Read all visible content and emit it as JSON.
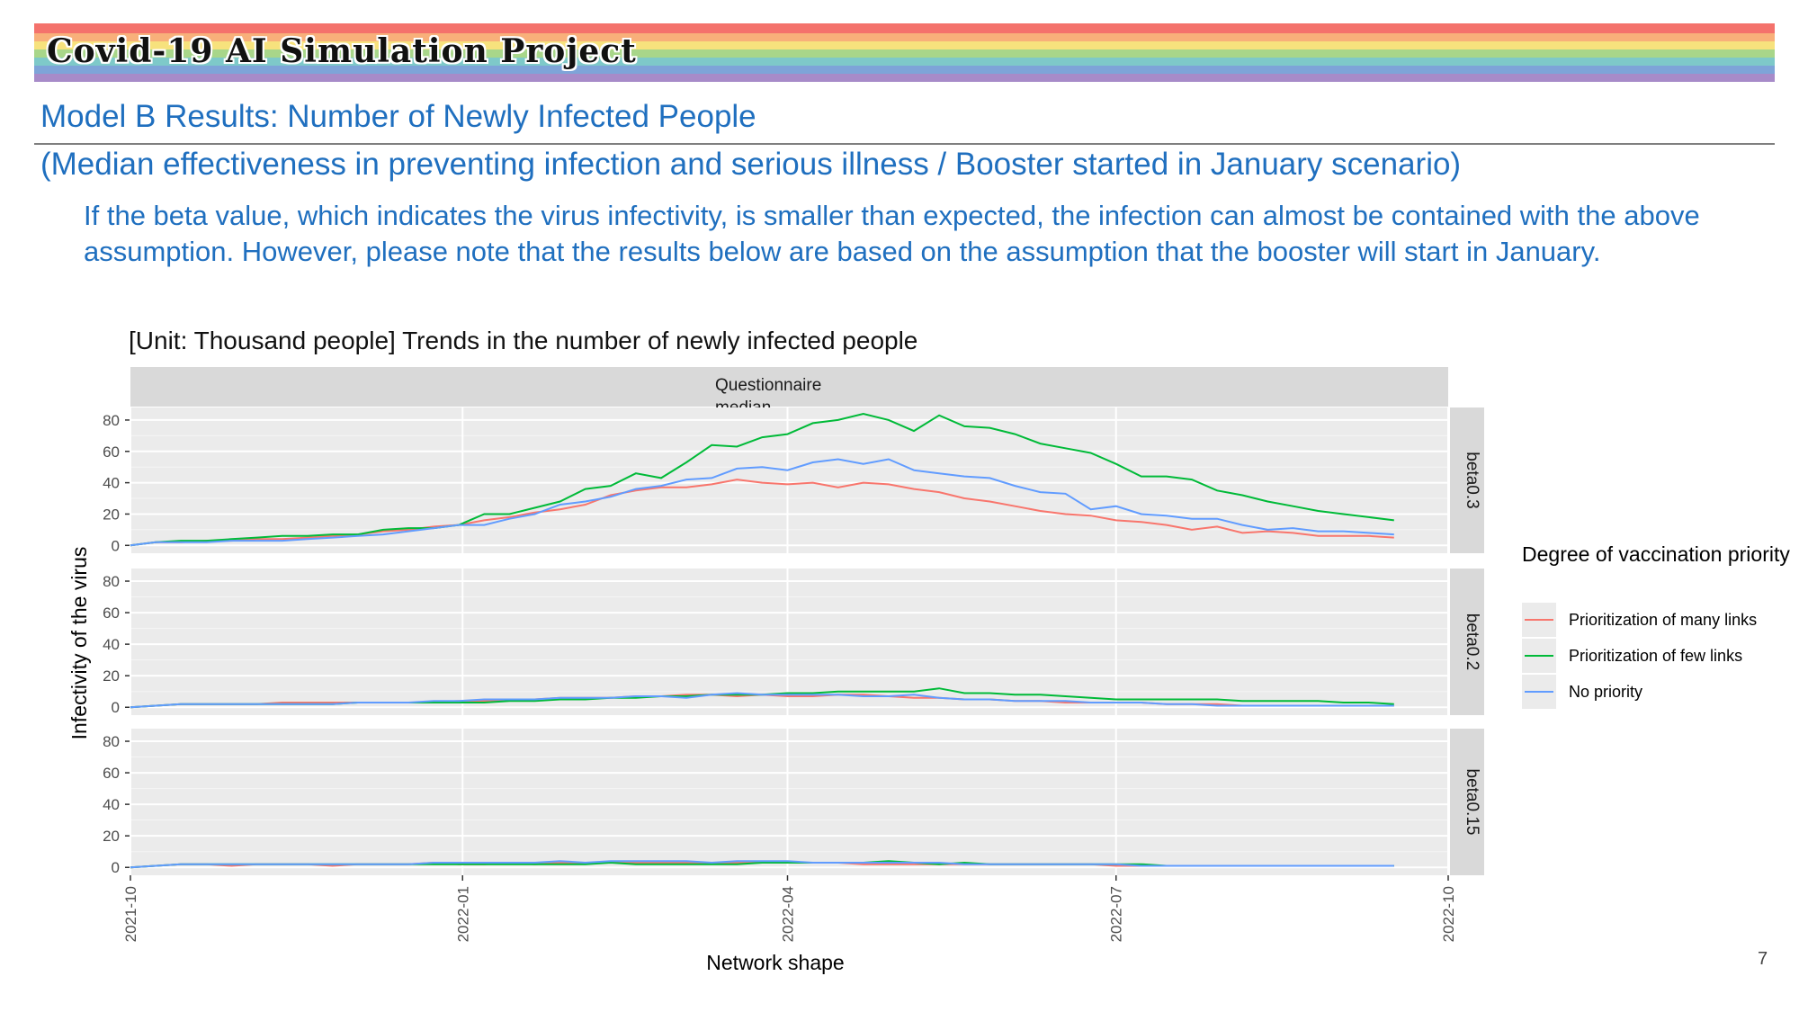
{
  "banner": {
    "title": "Covid-19 AI Simulation Project",
    "stripe_colors": [
      "#f4726c",
      "#f8b07a",
      "#f7e27d",
      "#a8d68a",
      "#7ec9c9",
      "#7ea4d8",
      "#a78bc9"
    ]
  },
  "slide": {
    "title": "Model B Results: Number of Newly Infected People",
    "subtitle": "(Median effectiveness in preventing infection and serious illness / Booster started in January scenario)",
    "body": "If the beta value, which indicates the virus infectivity, is smaller than expected, the infection can almost be contained with the above assumption. However, please note that the results below are based on the assumption that the booster will start in January.",
    "chart_heading": "[Unit: Thousand people] Trends in the number of newly infected people",
    "page_number": "7",
    "accent_color": "#1f6fbf"
  },
  "chart_data": {
    "type": "line",
    "facet_top_label": "Questionnaire median",
    "xlabel": "Network shape",
    "ylabel": "Infectivity of the virus",
    "x_ticks": [
      "2021-10",
      "2022-01",
      "2022-04",
      "2022-07",
      "2022-10"
    ],
    "xlim": [
      "2021-10-01",
      "2022-10-01"
    ],
    "ylim": [
      -5,
      88
    ],
    "y_ticks": [
      0,
      20,
      40,
      60,
      80
    ],
    "grid": true,
    "legend": {
      "title": "Degree of vaccination priority",
      "placement": "right",
      "entries": [
        {
          "name": "Prioritization of many links",
          "color": "#f8766d"
        },
        {
          "name": "Prioritization of few links",
          "color": "#00ba38"
        },
        {
          "name": "No priority",
          "color": "#619cff"
        }
      ]
    },
    "x": [
      "2021-10-01",
      "2021-10-08",
      "2021-10-15",
      "2021-10-22",
      "2021-10-29",
      "2021-11-05",
      "2021-11-12",
      "2021-11-19",
      "2021-11-26",
      "2021-12-03",
      "2021-12-10",
      "2021-12-17",
      "2021-12-24",
      "2021-12-31",
      "2022-01-07",
      "2022-01-14",
      "2022-01-21",
      "2022-01-28",
      "2022-02-04",
      "2022-02-11",
      "2022-02-18",
      "2022-02-25",
      "2022-03-04",
      "2022-03-11",
      "2022-03-18",
      "2022-03-25",
      "2022-04-01",
      "2022-04-08",
      "2022-04-15",
      "2022-04-22",
      "2022-04-29",
      "2022-05-06",
      "2022-05-13",
      "2022-05-20",
      "2022-05-27",
      "2022-06-03",
      "2022-06-10",
      "2022-06-17",
      "2022-06-24",
      "2022-07-01",
      "2022-07-08",
      "2022-07-15",
      "2022-07-22",
      "2022-07-29",
      "2022-08-05",
      "2022-08-12",
      "2022-08-19",
      "2022-08-26",
      "2022-09-02",
      "2022-09-09",
      "2022-09-16"
    ],
    "panels": [
      {
        "label": "beta0.3",
        "series": [
          {
            "name": "Prioritization of many links",
            "values": [
              0,
              2,
              2,
              3,
              3,
              4,
              4,
              5,
              6,
              7,
              9,
              10,
              12,
              13,
              16,
              18,
              21,
              23,
              26,
              32,
              35,
              37,
              37,
              39,
              42,
              40,
              39,
              40,
              37,
              40,
              39,
              36,
              34,
              30,
              28,
              25,
              22,
              20,
              19,
              16,
              15,
              13,
              10,
              12,
              8,
              9,
              8,
              6,
              6,
              6,
              5
            ]
          },
          {
            "name": "Prioritization of few links",
            "values": [
              0,
              2,
              3,
              3,
              4,
              5,
              6,
              6,
              7,
              7,
              10,
              11,
              11,
              13,
              20,
              20,
              24,
              28,
              36,
              38,
              46,
              43,
              53,
              64,
              63,
              69,
              71,
              78,
              80,
              84,
              80,
              73,
              83,
              76,
              75,
              71,
              65,
              62,
              59,
              52,
              44,
              44,
              42,
              35,
              32,
              28,
              25,
              22,
              20,
              18,
              16
            ]
          },
          {
            "name": "No priority",
            "values": [
              0,
              2,
              2,
              2,
              3,
              3,
              3,
              4,
              5,
              6,
              7,
              9,
              11,
              13,
              13,
              17,
              20,
              26,
              28,
              31,
              36,
              38,
              42,
              43,
              49,
              50,
              48,
              53,
              55,
              52,
              55,
              48,
              46,
              44,
              43,
              38,
              34,
              33,
              23,
              25,
              20,
              19,
              17,
              17,
              13,
              10,
              11,
              9,
              9,
              8,
              7
            ]
          }
        ]
      },
      {
        "label": "beta0.2",
        "series": [
          {
            "name": "Prioritization of many links",
            "values": [
              0,
              1,
              2,
              2,
              2,
              2,
              3,
              3,
              3,
              3,
              3,
              3,
              3,
              4,
              4,
              5,
              5,
              6,
              6,
              6,
              7,
              7,
              8,
              8,
              7,
              8,
              7,
              7,
              8,
              8,
              7,
              6,
              6,
              5,
              5,
              4,
              4,
              3,
              3,
              3,
              3,
              2,
              2,
              2,
              1,
              1,
              1,
              1,
              1,
              1,
              1
            ]
          },
          {
            "name": "Prioritization of few links",
            "values": [
              0,
              1,
              2,
              2,
              2,
              2,
              2,
              2,
              2,
              3,
              3,
              3,
              3,
              3,
              3,
              4,
              4,
              5,
              5,
              6,
              6,
              7,
              7,
              8,
              8,
              8,
              9,
              9,
              10,
              10,
              10,
              10,
              12,
              9,
              9,
              8,
              8,
              7,
              6,
              5,
              5,
              5,
              5,
              5,
              4,
              4,
              4,
              4,
              3,
              3,
              2
            ]
          },
          {
            "name": "No priority",
            "values": [
              0,
              1,
              2,
              2,
              2,
              2,
              2,
              2,
              2,
              3,
              3,
              3,
              4,
              4,
              5,
              5,
              5,
              6,
              6,
              6,
              7,
              7,
              6,
              8,
              9,
              8,
              8,
              8,
              8,
              7,
              7,
              8,
              6,
              5,
              5,
              4,
              4,
              4,
              3,
              3,
              3,
              2,
              2,
              1,
              1,
              1,
              1,
              1,
              1,
              1,
              1
            ]
          }
        ]
      },
      {
        "label": "beta0.15",
        "series": [
          {
            "name": "Prioritization of many links",
            "values": [
              0,
              1,
              2,
              2,
              1,
              2,
              2,
              2,
              1,
              2,
              2,
              2,
              3,
              2,
              2,
              3,
              2,
              3,
              3,
              3,
              3,
              3,
              3,
              3,
              3,
              3,
              3,
              3,
              3,
              2,
              2,
              2,
              2,
              2,
              2,
              2,
              2,
              2,
              2,
              1,
              1,
              1,
              1,
              1,
              1,
              1,
              1,
              1,
              1,
              1,
              1
            ]
          },
          {
            "name": "Prioritization of few links",
            "values": [
              0,
              1,
              2,
              2,
              2,
              2,
              2,
              2,
              2,
              2,
              2,
              2,
              2,
              2,
              2,
              2,
              2,
              2,
              2,
              3,
              2,
              2,
              2,
              2,
              2,
              3,
              3,
              3,
              3,
              3,
              4,
              3,
              2,
              3,
              2,
              2,
              2,
              2,
              2,
              2,
              2,
              1,
              1,
              1,
              1,
              1,
              1,
              1,
              1,
              1,
              1
            ]
          },
          {
            "name": "No priority",
            "values": [
              0,
              1,
              2,
              2,
              2,
              2,
              2,
              2,
              2,
              2,
              2,
              2,
              3,
              3,
              3,
              3,
              3,
              4,
              3,
              4,
              4,
              4,
              4,
              3,
              4,
              4,
              4,
              3,
              3,
              3,
              3,
              3,
              3,
              2,
              2,
              2,
              2,
              2,
              2,
              2,
              1,
              1,
              1,
              1,
              1,
              1,
              1,
              1,
              1,
              1,
              1
            ]
          }
        ]
      }
    ]
  }
}
